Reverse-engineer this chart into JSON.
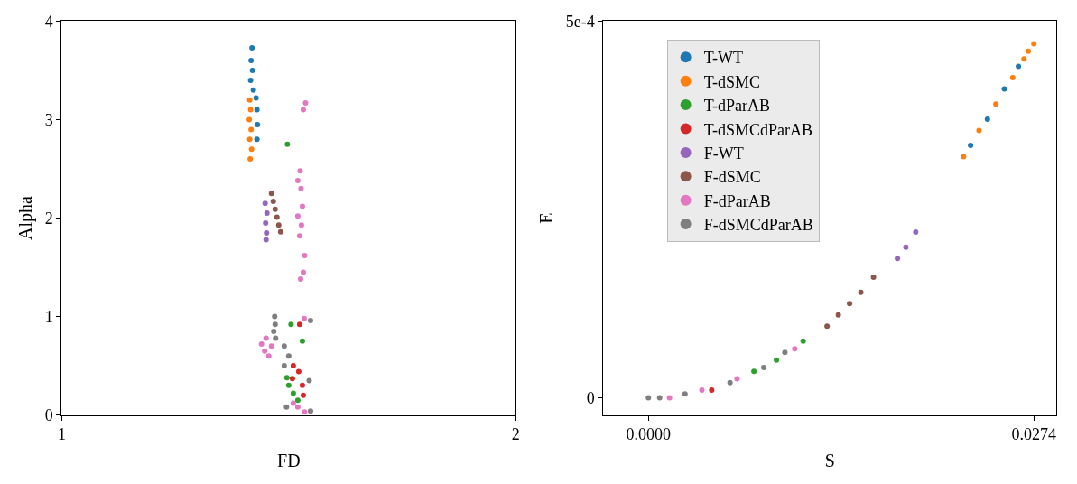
{
  "chart_data": [
    {
      "type": "scatter",
      "xlabel": "FD",
      "ylabel": "Alpha",
      "xlim": [
        1,
        2
      ],
      "ylim": [
        0,
        4
      ],
      "xticks": [
        1,
        2
      ],
      "yticks": [
        0,
        1,
        2,
        3,
        4
      ],
      "marker": "circle",
      "legend": false,
      "series": [
        {
          "color": "#1f77b4",
          "x": [
            1.419,
            1.417,
            1.42,
            1.416,
            1.422,
            1.428,
            1.43,
            1.431,
            1.43
          ],
          "values": [
            3.73,
            3.6,
            3.5,
            3.4,
            3.3,
            3.22,
            3.1,
            2.95,
            2.8
          ]
        },
        {
          "color": "#ff7f0e",
          "x": [
            1.414,
            1.416,
            1.413,
            1.417,
            1.414,
            1.418,
            1.415
          ],
          "values": [
            3.2,
            3.1,
            3.0,
            2.9,
            2.8,
            2.7,
            2.6
          ]
        },
        {
          "color": "#2ca02c",
          "x": [
            1.497,
            1.505,
            1.53,
            1.496,
            1.5,
            1.51,
            1.52
          ],
          "values": [
            2.75,
            0.92,
            0.75,
            0.38,
            0.3,
            0.22,
            0.15
          ]
        },
        {
          "color": "#d62728",
          "x": [
            1.524,
            1.51,
            1.522,
            1.508,
            1.53,
            1.532
          ],
          "values": [
            0.92,
            0.5,
            0.44,
            0.37,
            0.3,
            0.2
          ]
        },
        {
          "color": "#9467bd",
          "x": [
            1.448,
            1.452,
            1.449,
            1.451,
            1.45
          ],
          "values": [
            2.15,
            2.05,
            1.95,
            1.85,
            1.78
          ]
        },
        {
          "color": "#8c564b",
          "x": [
            1.462,
            1.466,
            1.47,
            1.474,
            1.478,
            1.482
          ],
          "values": [
            2.25,
            2.17,
            2.09,
            2.01,
            1.93,
            1.86
          ]
        },
        {
          "color": "#e377c2",
          "x": [
            1.537,
            1.532,
            1.525,
            1.52,
            1.527,
            1.53,
            1.52,
            1.528,
            1.524,
            1.535,
            1.532,
            1.526,
            1.534,
            1.45,
            1.44,
            1.447,
            1.456,
            1.462,
            1.52,
            1.535,
            1.51
          ],
          "values": [
            3.17,
            3.1,
            2.48,
            2.38,
            2.3,
            2.12,
            2.02,
            1.93,
            1.82,
            1.62,
            1.45,
            1.38,
            0.98,
            0.78,
            0.72,
            0.65,
            0.6,
            0.7,
            0.08,
            0.03,
            0.12
          ]
        },
        {
          "color": "#7f7f7f",
          "x": [
            1.469,
            1.47,
            1.467,
            1.471,
            1.548,
            1.49,
            1.5,
            1.49,
            1.545,
            1.548,
            1.495
          ],
          "values": [
            1.0,
            0.92,
            0.85,
            0.78,
            0.96,
            0.7,
            0.6,
            0.5,
            0.35,
            0.04,
            0.08
          ]
        }
      ]
    },
    {
      "type": "scatter",
      "xlabel": "S",
      "ylabel": "E",
      "xlim": [
        -0.0032,
        0.029
      ],
      "ylim": [
        -2.3e-05,
        0.0005
      ],
      "xticks": [
        {
          "value": 0,
          "label": "0.0000"
        },
        0.0274
      ],
      "yticks": [
        0,
        {
          "value": 0.0005,
          "label": "5e-4"
        }
      ],
      "marker": "circle",
      "legend": "top left",
      "series": [
        {
          "name": "T-WT",
          "color": "#1f77b4",
          "x": [
            0.0229,
            0.0241,
            0.0253,
            0.0263
          ],
          "values": [
            0.000335,
            0.00037,
            0.00041,
            0.00044
          ]
        },
        {
          "name": "T-dSMC",
          "color": "#ff7f0e",
          "x": [
            0.0224,
            0.0235,
            0.0247,
            0.0259,
            0.0267,
            0.027,
            0.0274
          ],
          "values": [
            0.00032,
            0.000355,
            0.00039,
            0.000425,
            0.00045,
            0.00046,
            0.00047
          ]
        },
        {
          "name": "T-dParAB",
          "color": "#2ca02c",
          "x": [
            0.011,
            0.0091,
            0.0075
          ],
          "values": [
            7.5e-05,
            5e-05,
            3.5e-05
          ]
        },
        {
          "name": "T-dSMCdParAB",
          "color": "#d62728",
          "x": [
            0.0045
          ],
          "values": [
            1e-05
          ]
        },
        {
          "name": "F-WT",
          "color": "#9467bd",
          "x": [
            0.0177,
            0.0183,
            0.019
          ],
          "values": [
            0.000185,
            0.0002,
            0.00022
          ]
        },
        {
          "name": "F-dSMC",
          "color": "#8c564b",
          "x": [
            0.0127,
            0.0135,
            0.0143,
            0.0151,
            0.016
          ],
          "values": [
            9.5e-05,
            0.00011,
            0.000125,
            0.00014,
            0.00016
          ]
        },
        {
          "name": "F-dParAB",
          "color": "#e377c2",
          "x": [
            0.0015,
            0.0038,
            0.0063,
            0.0104
          ],
          "values": [
            0,
            1e-05,
            2.5e-05,
            6.5e-05
          ]
        },
        {
          "name": "F-dSMCdParAB",
          "color": "#7f7f7f",
          "x": [
            0,
            0.0008,
            0.0026,
            0.0058,
            0.0082,
            0.0097
          ],
          "values": [
            0,
            0,
            5e-06,
            2e-05,
            4e-05,
            6e-05
          ]
        }
      ]
    }
  ]
}
